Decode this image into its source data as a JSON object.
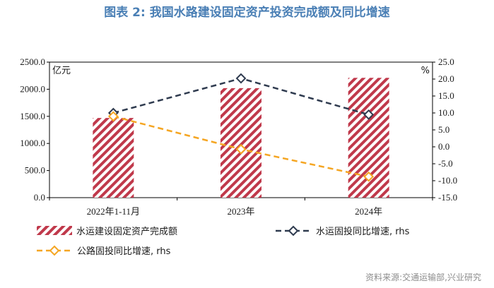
{
  "title": "图表 2:  我国水路建设固定资产投资完成额及同比增速",
  "source": "资料来源:交通运输部,兴业研究",
  "colors": {
    "title": "#4a7fb5",
    "bar": "#c0394b",
    "water_line": "#2f3b4f",
    "road_line": "#f5a623"
  },
  "chart_data": {
    "type": "bar+line",
    "categories": [
      "2022年1-11月",
      "2023年",
      "2024年"
    ],
    "left_axis": {
      "unit": "亿元",
      "ylim": [
        0,
        2500
      ],
      "ticks": [
        "0.0",
        "500.0",
        "1000.0",
        "1500.0",
        "2000.0",
        "2500.0"
      ]
    },
    "right_axis": {
      "unit": "%",
      "ylim": [
        -15,
        25
      ],
      "ticks": [
        "-15.0",
        "-10.0",
        "-5.0",
        "0.0",
        "5.0",
        "10.0",
        "15.0",
        "20.0",
        "25.0"
      ]
    },
    "series": [
      {
        "name": "水运建设固定资产完成额",
        "type": "bar",
        "axis": "left",
        "values": [
          1470,
          2020,
          2210
        ]
      },
      {
        "name": "水运固投同比增速, rhs",
        "type": "line",
        "axis": "right",
        "values": [
          10.0,
          20.2,
          9.5
        ]
      },
      {
        "name": "公路固投同比增速, rhs",
        "type": "line",
        "axis": "right",
        "values": [
          9.0,
          -0.7,
          -8.8
        ]
      }
    ],
    "legend": "bottom"
  }
}
